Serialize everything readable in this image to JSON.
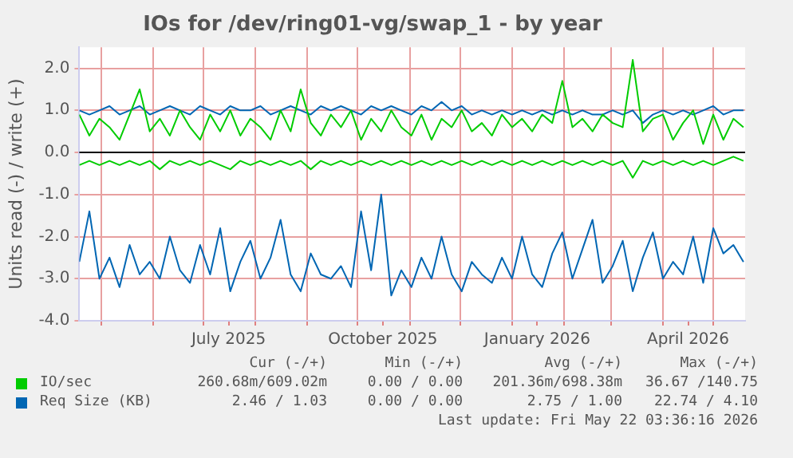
{
  "chart_data": {
    "type": "line",
    "title": "IOs for /dev/ring01-vg/swap_1 - by year",
    "ylabel": "Units read (-) / write (+)",
    "x": [
      "2025-04-18",
      "2025-04-24",
      "2025-04-30",
      "2025-05-06",
      "2025-05-12",
      "2025-05-18",
      "2025-05-24",
      "2025-05-30",
      "2025-06-05",
      "2025-06-11",
      "2025-06-17",
      "2025-06-23",
      "2025-06-29",
      "2025-07-05",
      "2025-07-11",
      "2025-07-17",
      "2025-07-23",
      "2025-07-29",
      "2025-08-04",
      "2025-08-10",
      "2025-08-16",
      "2025-08-22",
      "2025-08-28",
      "2025-09-03",
      "2025-09-09",
      "2025-09-15",
      "2025-09-21",
      "2025-09-27",
      "2025-10-03",
      "2025-10-09",
      "2025-10-15",
      "2025-10-21",
      "2025-10-27",
      "2025-11-02",
      "2025-11-08",
      "2025-11-14",
      "2025-11-20",
      "2025-11-26",
      "2025-12-02",
      "2025-12-08",
      "2025-12-14",
      "2025-12-20",
      "2025-12-26",
      "2026-01-01",
      "2026-01-07",
      "2026-01-13",
      "2026-01-19",
      "2026-01-25",
      "2026-01-31",
      "2026-02-06",
      "2026-02-12",
      "2026-02-18",
      "2026-02-24",
      "2026-03-02",
      "2026-03-08",
      "2026-03-14",
      "2026-03-20",
      "2026-03-26",
      "2026-04-01",
      "2026-04-07",
      "2026-04-13",
      "2026-04-19",
      "2026-04-25",
      "2026-05-01",
      "2026-05-07",
      "2026-05-13",
      "2026-05-19"
    ],
    "series": [
      {
        "name": "IO/sec",
        "color": "#00cc00",
        "values": [
          0.9,
          0.4,
          0.8,
          0.6,
          0.3,
          0.9,
          1.5,
          0.5,
          0.8,
          0.4,
          1.0,
          0.6,
          0.3,
          0.9,
          0.5,
          1.0,
          0.4,
          0.8,
          0.6,
          0.3,
          1.0,
          0.5,
          1.5,
          0.7,
          0.4,
          0.9,
          0.6,
          1.0,
          0.3,
          0.8,
          0.5,
          1.0,
          0.6,
          0.4,
          0.9,
          0.3,
          0.8,
          0.6,
          1.0,
          0.5,
          0.7,
          0.4,
          0.9,
          0.6,
          0.8,
          0.5,
          0.9,
          0.7,
          1.7,
          0.6,
          0.8,
          0.5,
          0.9,
          0.7,
          0.6,
          2.2,
          0.5,
          0.8,
          0.9,
          0.3,
          0.7,
          1.0,
          0.2,
          0.9,
          0.3,
          0.8,
          0.6
        ]
      },
      {
        "color": "#00cc00",
        "values": [
          -0.3,
          -0.2,
          -0.3,
          -0.2,
          -0.3,
          -0.2,
          -0.3,
          -0.2,
          -0.4,
          -0.2,
          -0.3,
          -0.2,
          -0.3,
          -0.2,
          -0.3,
          -0.4,
          -0.2,
          -0.3,
          -0.2,
          -0.3,
          -0.2,
          -0.3,
          -0.2,
          -0.4,
          -0.2,
          -0.3,
          -0.2,
          -0.3,
          -0.2,
          -0.3,
          -0.2,
          -0.3,
          -0.2,
          -0.3,
          -0.2,
          -0.3,
          -0.2,
          -0.3,
          -0.2,
          -0.3,
          -0.2,
          -0.3,
          -0.2,
          -0.3,
          -0.2,
          -0.3,
          -0.2,
          -0.3,
          -0.2,
          -0.3,
          -0.2,
          -0.3,
          -0.2,
          -0.3,
          -0.2,
          -0.6,
          -0.2,
          -0.3,
          -0.2,
          -0.3,
          -0.2,
          -0.3,
          -0.2,
          -0.3,
          -0.2,
          -0.1,
          -0.2
        ]
      },
      {
        "name": "Req Size (KB)",
        "color": "#0066b3",
        "values": [
          1.0,
          0.9,
          1.0,
          1.1,
          0.9,
          1.0,
          1.1,
          0.9,
          1.0,
          1.1,
          1.0,
          0.9,
          1.1,
          1.0,
          0.9,
          1.1,
          1.0,
          1.0,
          1.1,
          0.9,
          1.0,
          1.1,
          1.0,
          0.9,
          1.1,
          1.0,
          1.1,
          1.0,
          0.9,
          1.1,
          1.0,
          1.1,
          1.0,
          0.9,
          1.1,
          1.0,
          1.2,
          1.0,
          1.1,
          0.9,
          1.0,
          0.9,
          1.0,
          0.9,
          1.0,
          0.9,
          1.0,
          0.9,
          1.0,
          0.9,
          1.0,
          0.9,
          0.9,
          1.0,
          0.9,
          1.0,
          0.7,
          0.9,
          1.0,
          0.9,
          1.0,
          0.9,
          1.0,
          1.1,
          0.9,
          1.0,
          1.0
        ]
      },
      {
        "color": "#0066b3",
        "values": [
          -2.6,
          -1.4,
          -3.0,
          -2.5,
          -3.2,
          -2.2,
          -2.9,
          -2.6,
          -3.0,
          -2.0,
          -2.8,
          -3.1,
          -2.2,
          -2.9,
          -1.8,
          -3.3,
          -2.6,
          -2.1,
          -3.0,
          -2.5,
          -1.6,
          -2.9,
          -3.3,
          -2.4,
          -2.9,
          -3.0,
          -2.7,
          -3.2,
          -1.4,
          -2.8,
          -1.0,
          -3.4,
          -2.8,
          -3.2,
          -2.5,
          -3.0,
          -2.0,
          -2.9,
          -3.3,
          -2.6,
          -2.9,
          -3.1,
          -2.5,
          -3.0,
          -2.0,
          -2.9,
          -3.2,
          -2.4,
          -1.9,
          -3.0,
          -2.3,
          -1.6,
          -3.1,
          -2.7,
          -2.1,
          -3.3,
          -2.5,
          -1.9,
          -3.0,
          -2.6,
          -2.9,
          -2.0,
          -3.1,
          -1.8,
          -2.4,
          -2.2,
          -2.6
        ]
      }
    ],
    "xlim": [
      "2025-04-18",
      "2026-05-20"
    ],
    "xticks": [
      {
        "value": "2025-05-01",
        "label": null
      },
      {
        "value": "2025-06-01",
        "label": null
      },
      {
        "value": "2025-07-01",
        "label": null
      },
      {
        "value": "2025-07-16",
        "label": "July 2025"
      },
      {
        "value": "2025-08-01",
        "label": null
      },
      {
        "value": "2025-09-01",
        "label": null
      },
      {
        "value": "2025-10-01",
        "label": null
      },
      {
        "value": "2025-10-16",
        "label": "October 2025"
      },
      {
        "value": "2025-11-01",
        "label": null
      },
      {
        "value": "2025-12-01",
        "label": null
      },
      {
        "value": "2026-01-01",
        "label": null
      },
      {
        "value": "2026-01-16",
        "label": "January 2026"
      },
      {
        "value": "2026-02-01",
        "label": null
      },
      {
        "value": "2026-03-01",
        "label": null
      },
      {
        "value": "2026-04-01",
        "label": null
      },
      {
        "value": "2026-04-16",
        "label": "April 2026"
      },
      {
        "value": "2026-05-01",
        "label": null
      }
    ],
    "ylim": [
      -4,
      2.5
    ],
    "yticks": [
      {
        "value": -4,
        "label": "-4.0"
      },
      {
        "value": -3,
        "label": "-3.0"
      },
      {
        "value": -2,
        "label": "-2.0"
      },
      {
        "value": -1,
        "label": "-1.0"
      },
      {
        "value": 0,
        "label": "0.0"
      },
      {
        "value": 1,
        "label": "1.0"
      },
      {
        "value": 2,
        "label": "2.0"
      }
    ],
    "ref_lines": [
      {
        "axis": "y",
        "value": 0,
        "color": "#000000"
      }
    ],
    "grid": true,
    "legend": "bottom",
    "marker": "none",
    "line_style": "solid",
    "annotations": [
      "Cur (-/+)",
      "Min (-/+)",
      "Avg (-/+)",
      "Max (-/+)",
      "260.68m/609.02m",
      "0.00 / 0.00",
      "201.36m/698.38m",
      "36.67 /140.75",
      "2.46 / 1.03",
      "0.00 / 0.00",
      "2.75 / 1.00",
      "22.74 / 4.10",
      "Last update: Fri May 22 03:36:16 2026"
    ]
  }
}
